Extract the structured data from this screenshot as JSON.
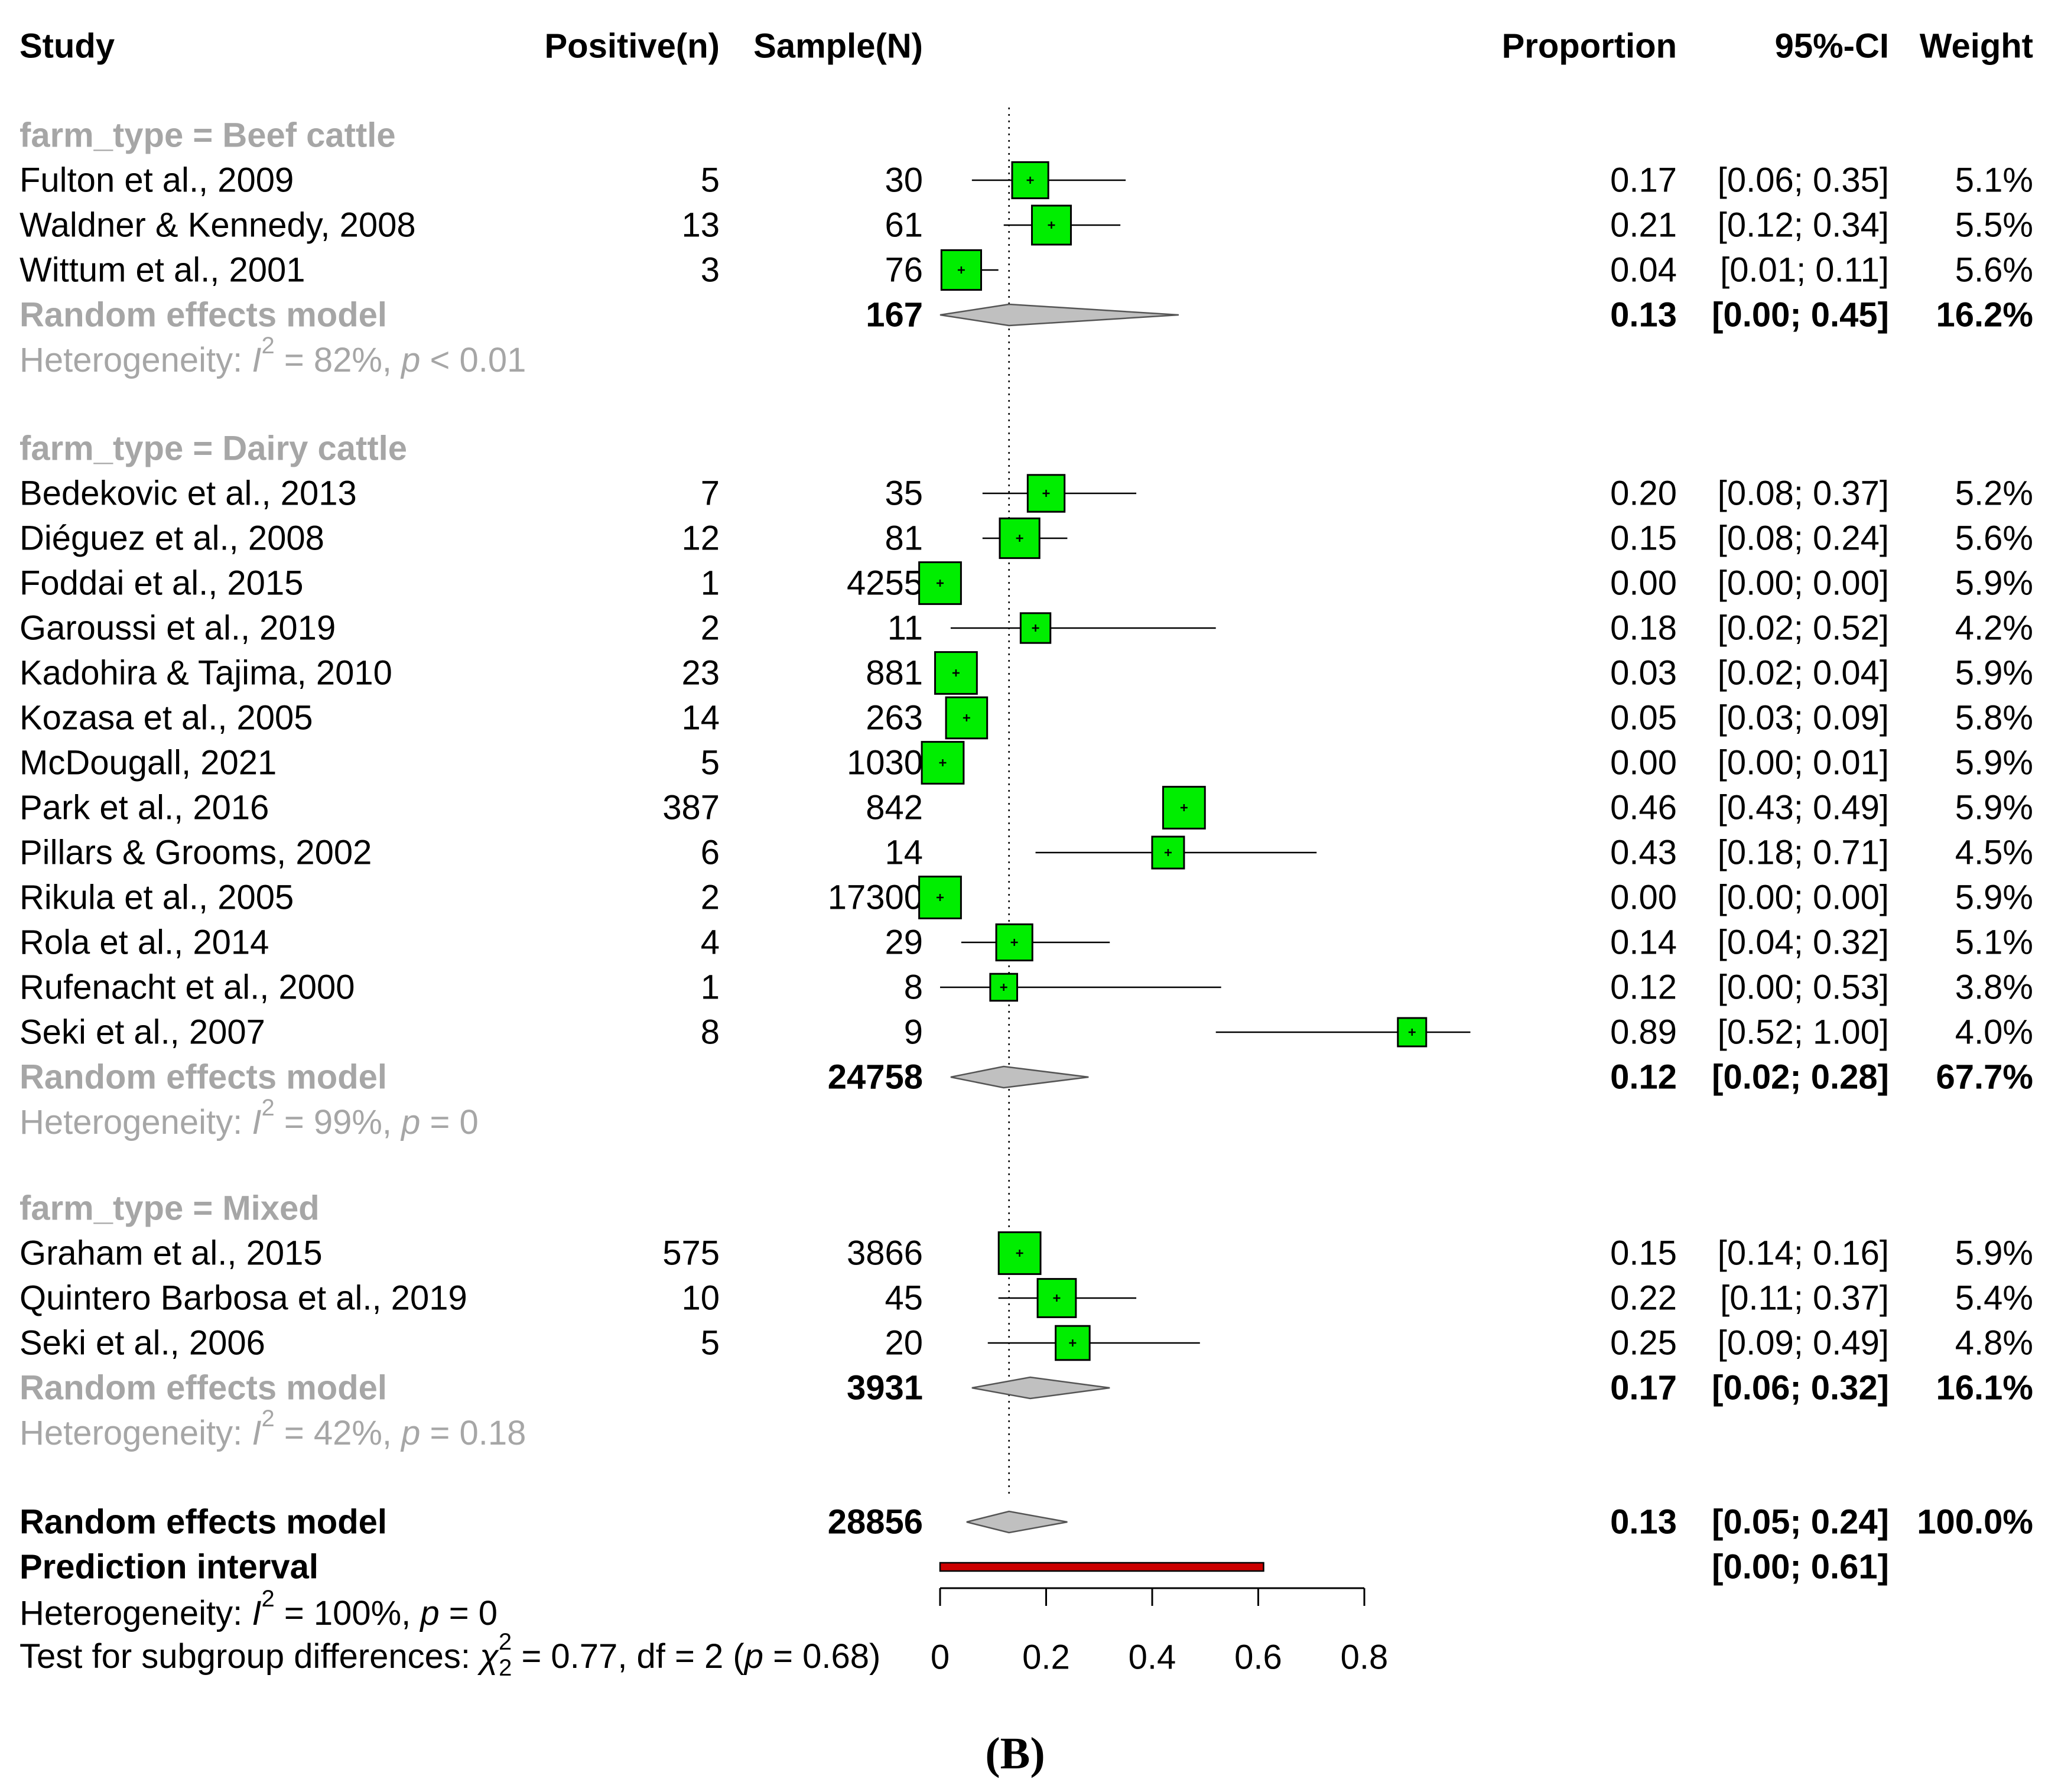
{
  "chart_data": {
    "type": "forest",
    "figure_label": "(B)",
    "columns": {
      "study": "Study",
      "positive": "Positive(n)",
      "sample": "Sample(N)",
      "proportion": "Proportion",
      "ci": "95%-CI",
      "weight": "Weight"
    },
    "reference_line": 0.13,
    "xaxis": {
      "ticks": [
        "0",
        "0.2",
        "0.4",
        "0.6",
        "0.8"
      ],
      "range": [
        0,
        0.8
      ]
    },
    "subgroups": [
      {
        "label": "farm_type = Beef cattle",
        "studies": [
          {
            "study": "Fulton et al., 2009",
            "positive": "5",
            "sample": "30",
            "proportion": "0.17",
            "ci": "[0.06; 0.35]",
            "weight": "5.1%",
            "est": 0.17,
            "lo": 0.06,
            "hi": 0.35,
            "w": 5.1
          },
          {
            "study": "Waldner & Kennedy, 2008",
            "positive": "13",
            "sample": "61",
            "proportion": "0.21",
            "ci": "[0.12; 0.34]",
            "weight": "5.5%",
            "est": 0.21,
            "lo": 0.12,
            "hi": 0.34,
            "w": 5.5
          },
          {
            "study": "Wittum et al., 2001",
            "positive": "3",
            "sample": "76",
            "proportion": "0.04",
            "ci": "[0.01; 0.11]",
            "weight": "5.6%",
            "est": 0.04,
            "lo": 0.01,
            "hi": 0.11,
            "w": 5.6
          }
        ],
        "model": {
          "label": "Random effects model",
          "sample": "167",
          "proportion": "0.13",
          "ci": "[0.00; 0.45]",
          "weight": "16.2%",
          "est": 0.13,
          "lo": 0.0,
          "hi": 0.45
        },
        "heterogeneity": {
          "prefix": "Heterogeneity: ",
          "I": "I",
          "sup": "2",
          "mid": " = 82%, ",
          "p": "p",
          "rest": " < 0.01"
        }
      },
      {
        "label": "farm_type = Dairy cattle",
        "studies": [
          {
            "study": "Bedekovic et al., 2013",
            "positive": "7",
            "sample": "35",
            "proportion": "0.20",
            "ci": "[0.08; 0.37]",
            "weight": "5.2%",
            "est": 0.2,
            "lo": 0.08,
            "hi": 0.37,
            "w": 5.2
          },
          {
            "study": "Diéguez et al., 2008",
            "positive": "12",
            "sample": "81",
            "proportion": "0.15",
            "ci": "[0.08; 0.24]",
            "weight": "5.6%",
            "est": 0.15,
            "lo": 0.08,
            "hi": 0.24,
            "w": 5.6
          },
          {
            "study": "Foddai et al., 2015",
            "positive": "1",
            "sample": "4255",
            "proportion": "0.00",
            "ci": "[0.00; 0.00]",
            "weight": "5.9%",
            "est": 0.0,
            "lo": 0.0,
            "hi": 0.0,
            "w": 5.9
          },
          {
            "study": "Garoussi et al., 2019",
            "positive": "2",
            "sample": "11",
            "proportion": "0.18",
            "ci": "[0.02; 0.52]",
            "weight": "4.2%",
            "est": 0.18,
            "lo": 0.02,
            "hi": 0.52,
            "w": 4.2
          },
          {
            "study": "Kadohira & Tajima, 2010",
            "positive": "23",
            "sample": "881",
            "proportion": "0.03",
            "ci": "[0.02; 0.04]",
            "weight": "5.9%",
            "est": 0.03,
            "lo": 0.02,
            "hi": 0.04,
            "w": 5.9
          },
          {
            "study": "Kozasa et al., 2005",
            "positive": "14",
            "sample": "263",
            "proportion": "0.05",
            "ci": "[0.03; 0.09]",
            "weight": "5.8%",
            "est": 0.05,
            "lo": 0.03,
            "hi": 0.09,
            "w": 5.8
          },
          {
            "study": "McDougall, 2021",
            "positive": "5",
            "sample": "1030",
            "proportion": "0.00",
            "ci": "[0.00; 0.01]",
            "weight": "5.9%",
            "est": 0.005,
            "lo": 0.0,
            "hi": 0.01,
            "w": 5.9
          },
          {
            "study": "Park et al., 2016",
            "positive": "387",
            "sample": "842",
            "proportion": "0.46",
            "ci": "[0.43; 0.49]",
            "weight": "5.9%",
            "est": 0.46,
            "lo": 0.43,
            "hi": 0.49,
            "w": 5.9
          },
          {
            "study": "Pillars & Grooms, 2002",
            "positive": "6",
            "sample": "14",
            "proportion": "0.43",
            "ci": "[0.18; 0.71]",
            "weight": "4.5%",
            "est": 0.43,
            "lo": 0.18,
            "hi": 0.71,
            "w": 4.5
          },
          {
            "study": "Rikula et al., 2005",
            "positive": "2",
            "sample": "17300",
            "proportion": "0.00",
            "ci": "[0.00; 0.00]",
            "weight": "5.9%",
            "est": 0.0,
            "lo": 0.0,
            "hi": 0.0,
            "w": 5.9
          },
          {
            "study": "Rola et al., 2014",
            "positive": "4",
            "sample": "29",
            "proportion": "0.14",
            "ci": "[0.04; 0.32]",
            "weight": "5.1%",
            "est": 0.14,
            "lo": 0.04,
            "hi": 0.32,
            "w": 5.1
          },
          {
            "study": "Rufenacht et al., 2000",
            "positive": "1",
            "sample": "8",
            "proportion": "0.12",
            "ci": "[0.00; 0.53]",
            "weight": "3.8%",
            "est": 0.12,
            "lo": 0.0,
            "hi": 0.53,
            "w": 3.8
          },
          {
            "study": "Seki et al., 2007",
            "positive": "8",
            "sample": "9",
            "proportion": "0.89",
            "ci": "[0.52; 1.00]",
            "weight": "4.0%",
            "est": 0.89,
            "lo": 0.52,
            "hi": 1.0,
            "w": 4.0
          }
        ],
        "model": {
          "label": "Random effects model",
          "sample": "24758",
          "proportion": "0.12",
          "ci": "[0.02; 0.28]",
          "weight": "67.7%",
          "est": 0.12,
          "lo": 0.02,
          "hi": 0.28
        },
        "heterogeneity": {
          "prefix": "Heterogeneity: ",
          "I": "I",
          "sup": "2",
          "mid": " = 99%, ",
          "p": "p",
          "rest": " = 0"
        }
      },
      {
        "label": "farm_type = Mixed",
        "studies": [
          {
            "study": "Graham et al., 2015",
            "positive": "575",
            "sample": "3866",
            "proportion": "0.15",
            "ci": "[0.14; 0.16]",
            "weight": "5.9%",
            "est": 0.15,
            "lo": 0.14,
            "hi": 0.16,
            "w": 5.9
          },
          {
            "study": "Quintero Barbosa et al., 2019",
            "positive": "10",
            "sample": "45",
            "proportion": "0.22",
            "ci": "[0.11; 0.37]",
            "weight": "5.4%",
            "est": 0.22,
            "lo": 0.11,
            "hi": 0.37,
            "w": 5.4
          },
          {
            "study": "Seki et al., 2006",
            "positive": "5",
            "sample": "20",
            "proportion": "0.25",
            "ci": "[0.09; 0.49]",
            "weight": "4.8%",
            "est": 0.25,
            "lo": 0.09,
            "hi": 0.49,
            "w": 4.8
          }
        ],
        "model": {
          "label": "Random effects model",
          "sample": "3931",
          "proportion": "0.17",
          "ci": "[0.06; 0.32]",
          "weight": "16.1%",
          "est": 0.17,
          "lo": 0.06,
          "hi": 0.32
        },
        "heterogeneity": {
          "prefix": "Heterogeneity: ",
          "I": "I",
          "sup": "2",
          "mid": " = 42%, ",
          "p": "p",
          "rest": " = 0.18"
        }
      }
    ],
    "overall": {
      "model": {
        "label": "Random effects model",
        "sample": "28856",
        "proportion": "0.13",
        "ci": "[0.05; 0.24]",
        "weight": "100.0%",
        "est": 0.13,
        "lo": 0.05,
        "hi": 0.24
      },
      "prediction": {
        "label": "Prediction interval",
        "ci": "[0.00; 0.61]",
        "lo": 0.0,
        "hi": 0.61
      },
      "heterogeneity": {
        "prefix": "Heterogeneity: ",
        "I": "I",
        "sup": "2",
        "mid": " = 100%, ",
        "p": "p",
        "rest": " = 0"
      },
      "subgroup_test": {
        "prefix": "Test for subgroup differences: ",
        "chi": "χ",
        "sup": "2",
        "sub": "2",
        "mid": " = 0.77, df = 2 (",
        "p": "p",
        "rest": " = 0.68)"
      }
    },
    "colors": {
      "box": "#00ee00",
      "diamond": "#c0c0c0",
      "prediction": "#cc0000",
      "subgroup_text": "#a6a6a6"
    }
  }
}
